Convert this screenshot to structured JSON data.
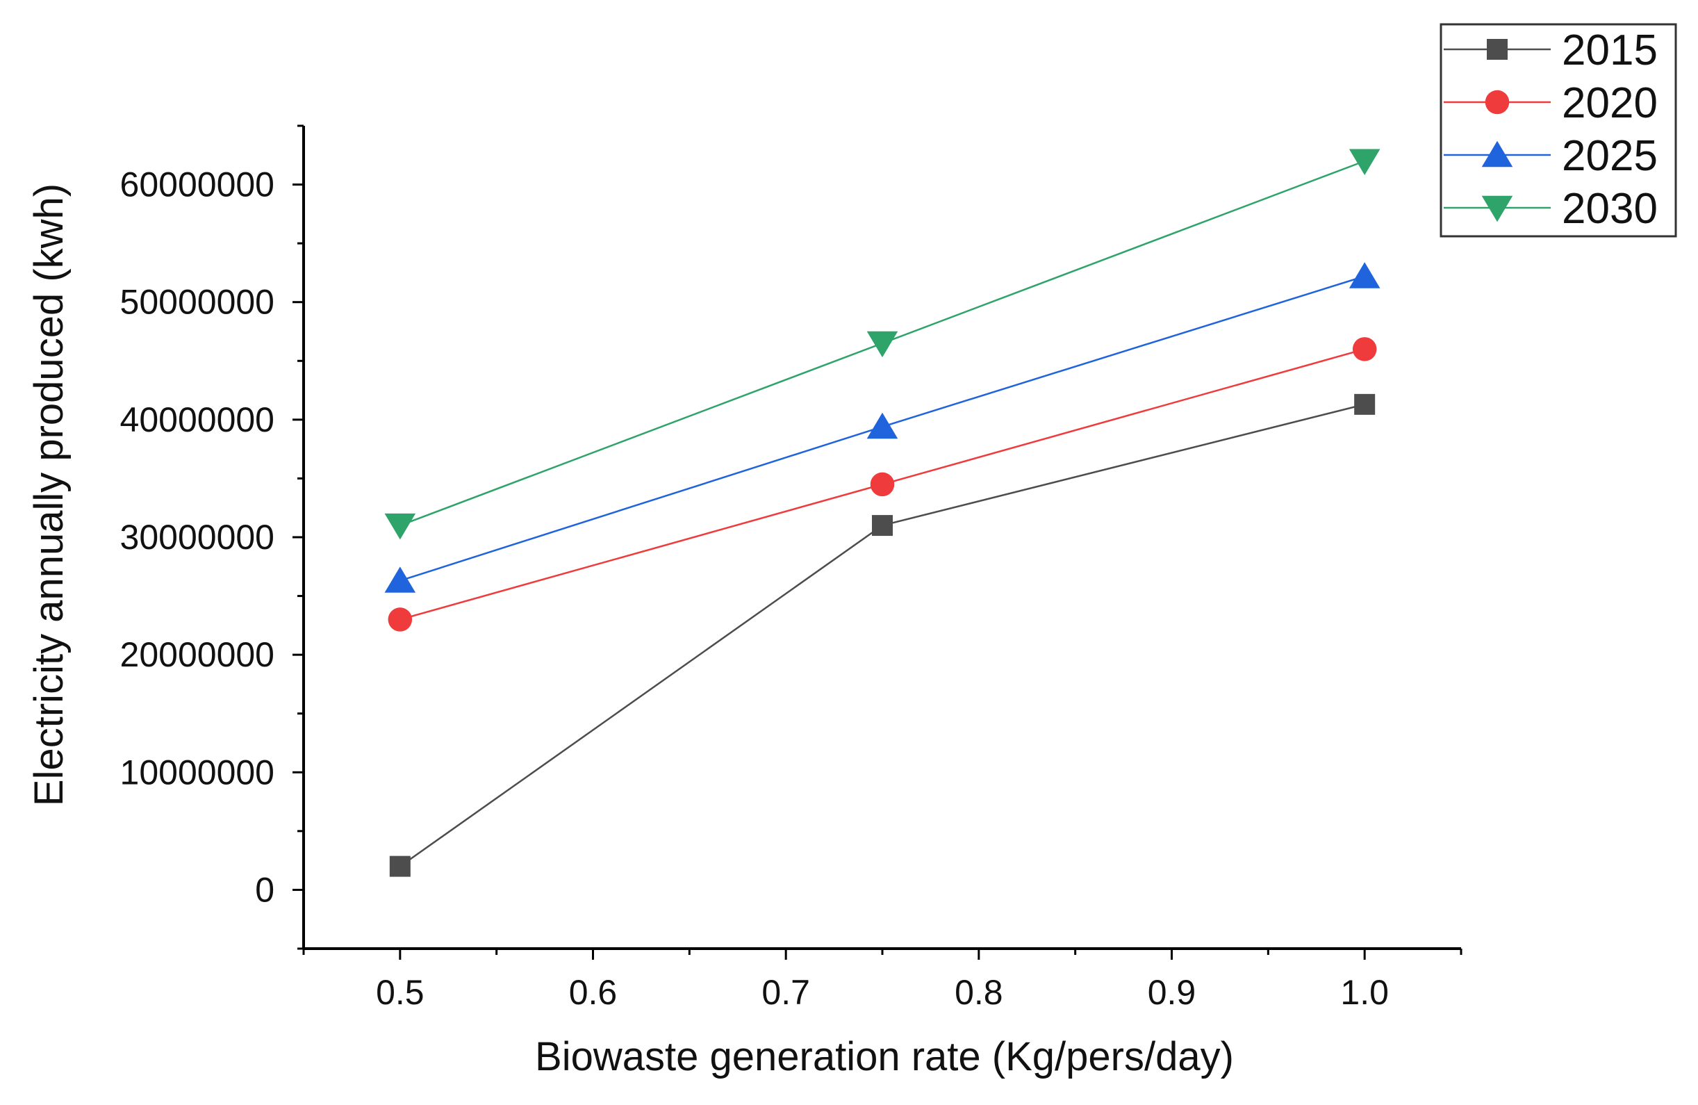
{
  "chart_data": {
    "type": "line",
    "title": "",
    "xlabel": "Biowaste generation rate (Kg/pers/day)",
    "ylabel": "Electricity annually produced (kwh)",
    "x": [
      0.5,
      0.75,
      1.0
    ],
    "xlim": [
      0.45,
      1.05
    ],
    "ylim": [
      -5000000,
      65000000
    ],
    "x_ticks": [
      0.5,
      0.6,
      0.7,
      0.8,
      0.9,
      1.0
    ],
    "x_tick_labels": [
      "0.5",
      "0.6",
      "0.7",
      "0.8",
      "0.9",
      "1.0"
    ],
    "y_ticks": [
      0,
      10000000,
      20000000,
      30000000,
      40000000,
      50000000,
      60000000
    ],
    "y_tick_labels": [
      "0",
      "10000000",
      "20000000",
      "30000000",
      "40000000",
      "50000000",
      "60000000"
    ],
    "grid": false,
    "legend_position": "top-right",
    "series": [
      {
        "name": "2015",
        "values": [
          2000000,
          31000000,
          41300000
        ],
        "color": "#4d4d4d",
        "marker": "square"
      },
      {
        "name": "2020",
        "values": [
          23000000,
          34500000,
          46000000
        ],
        "color": "#ef3b3b",
        "marker": "circle"
      },
      {
        "name": "2025",
        "values": [
          26300000,
          39400000,
          52200000
        ],
        "color": "#1f63dd",
        "marker": "triangle-up"
      },
      {
        "name": "2030",
        "values": [
          31000000,
          46500000,
          62000000
        ],
        "color": "#2ea36a",
        "marker": "triangle-down"
      }
    ]
  }
}
